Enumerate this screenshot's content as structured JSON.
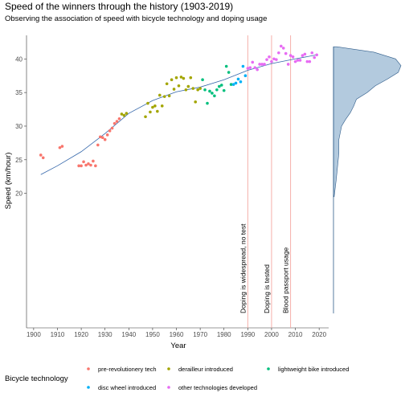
{
  "chart_data": {
    "type": "scatter",
    "title": "Speed of the winners through the history (1903-2019)",
    "subtitle": "Observing the association of speed with bicycle technology and doping usage",
    "xlabel": "Year",
    "ylabel": "Speed (km/hour)",
    "xlim": [
      1897,
      2024
    ],
    "ylim": [
      0,
      43.5
    ],
    "x_ticks": [
      1900,
      1910,
      1920,
      1930,
      1940,
      1950,
      1960,
      1970,
      1980,
      1990,
      2000,
      2010,
      2020
    ],
    "y_ticks": [
      20,
      25,
      30,
      35,
      40
    ],
    "grid": false,
    "legend": {
      "title": "Bicycle technology",
      "position": "bottom"
    },
    "series": [
      {
        "name": "pre-revolutionery tech",
        "color": "#F8766D",
        "points": [
          [
            1903,
            25.7
          ],
          [
            1904,
            25.3
          ],
          [
            1911,
            26.8
          ],
          [
            1912,
            27.0
          ],
          [
            1919,
            24.1
          ],
          [
            1920,
            24.1
          ],
          [
            1921,
            24.7
          ],
          [
            1922,
            24.2
          ],
          [
            1923,
            24.4
          ],
          [
            1924,
            24.2
          ],
          [
            1925,
            24.8
          ],
          [
            1926,
            24.1
          ],
          [
            1927,
            27.2
          ],
          [
            1928,
            28.4
          ],
          [
            1929,
            28.3
          ],
          [
            1930,
            28.0
          ],
          [
            1931,
            28.7
          ],
          [
            1932,
            29.3
          ],
          [
            1933,
            29.7
          ],
          [
            1934,
            30.4
          ],
          [
            1935,
            30.7
          ],
          [
            1936,
            31.1
          ]
        ]
      },
      {
        "name": "derailleur introduced",
        "color": "#A3A500",
        "points": [
          [
            1937,
            31.8
          ],
          [
            1938,
            31.6
          ],
          [
            1939,
            31.9
          ],
          [
            1947,
            31.4
          ],
          [
            1948,
            33.4
          ],
          [
            1949,
            32.1
          ],
          [
            1950,
            32.8
          ],
          [
            1951,
            33.0
          ],
          [
            1952,
            32.2
          ],
          [
            1953,
            34.6
          ],
          [
            1954,
            33.0
          ],
          [
            1955,
            34.4
          ],
          [
            1956,
            36.3
          ],
          [
            1957,
            34.5
          ],
          [
            1958,
            36.9
          ],
          [
            1959,
            35.5
          ],
          [
            1960,
            37.2
          ],
          [
            1961,
            36.0
          ],
          [
            1962,
            37.3
          ],
          [
            1963,
            37.1
          ],
          [
            1964,
            35.4
          ],
          [
            1965,
            35.9
          ],
          [
            1966,
            37.2
          ],
          [
            1967,
            35.6
          ],
          [
            1968,
            33.6
          ],
          [
            1969,
            35.4
          ],
          [
            1970,
            35.6
          ]
        ]
      },
      {
        "name": "lightweight bike introduced",
        "color": "#00BF7D",
        "points": [
          [
            1971,
            36.9
          ],
          [
            1972,
            35.4
          ],
          [
            1973,
            33.4
          ],
          [
            1974,
            35.2
          ],
          [
            1975,
            34.9
          ],
          [
            1976,
            34.5
          ],
          [
            1977,
            35.4
          ],
          [
            1978,
            35.9
          ],
          [
            1979,
            36.1
          ],
          [
            1980,
            35.3
          ],
          [
            1981,
            38.9
          ],
          [
            1982,
            38.0
          ],
          [
            1983,
            36.2
          ]
        ]
      },
      {
        "name": "disc wheel introduced",
        "color": "#00B0F6",
        "points": [
          [
            1984,
            36.2
          ],
          [
            1985,
            36.4
          ],
          [
            1986,
            37.0
          ],
          [
            1987,
            36.6
          ],
          [
            1988,
            38.9
          ],
          [
            1989,
            37.5
          ]
        ]
      },
      {
        "name": "other technologies developed",
        "color": "#E76BF3",
        "points": [
          [
            1990,
            38.6
          ],
          [
            1991,
            38.7
          ],
          [
            1992,
            39.5
          ],
          [
            1993,
            38.7
          ],
          [
            1994,
            38.4
          ],
          [
            1995,
            39.2
          ],
          [
            1996,
            39.2
          ],
          [
            1997,
            39.2
          ],
          [
            1998,
            39.9
          ],
          [
            1999,
            40.3
          ],
          [
            2000,
            39.6
          ],
          [
            2001,
            40.0
          ],
          [
            2002,
            39.9
          ],
          [
            2003,
            40.9
          ],
          [
            2004,
            41.9
          ],
          [
            2005,
            41.6
          ],
          [
            2006,
            40.8
          ],
          [
            2007,
            39.2
          ],
          [
            2008,
            40.5
          ],
          [
            2009,
            40.3
          ],
          [
            2010,
            39.6
          ],
          [
            2011,
            39.8
          ],
          [
            2012,
            39.8
          ],
          [
            2013,
            40.5
          ],
          [
            2014,
            40.7
          ],
          [
            2015,
            39.6
          ],
          [
            2016,
            39.6
          ],
          [
            2017,
            40.9
          ],
          [
            2018,
            40.2
          ],
          [
            2019,
            40.6
          ]
        ]
      }
    ],
    "trend_line": {
      "color": "#3366AA",
      "points": [
        [
          1903,
          22.8
        ],
        [
          1910,
          24.1
        ],
        [
          1920,
          26.2
        ],
        [
          1930,
          28.9
        ],
        [
          1940,
          31.9
        ],
        [
          1950,
          33.8
        ],
        [
          1960,
          35.1
        ],
        [
          1970,
          35.8
        ],
        [
          1980,
          36.9
        ],
        [
          1990,
          38.3
        ],
        [
          2000,
          39.3
        ],
        [
          2010,
          40.0
        ],
        [
          2019,
          40.6
        ]
      ]
    },
    "annotations": [
      {
        "x": 1990,
        "label": "Doping is widespread, no test"
      },
      {
        "x": 2000,
        "label": "Doping is tested"
      },
      {
        "x": 2008,
        "label": "Blood passport usage"
      }
    ],
    "annotation_line_color": "#F4A6A0",
    "density": {
      "color_fill": "#B3CADE",
      "color_line": "#2F5C8A",
      "y_values": [
        19.5,
        22,
        24,
        26,
        28,
        30,
        31,
        32,
        33,
        34,
        35,
        36,
        37,
        38,
        39,
        40,
        41,
        41.8
      ],
      "densities": [
        0.01,
        0.04,
        0.06,
        0.08,
        0.08,
        0.12,
        0.18,
        0.25,
        0.3,
        0.34,
        0.5,
        0.62,
        0.8,
        0.96,
        1.0,
        0.92,
        0.6,
        0.05
      ]
    }
  }
}
